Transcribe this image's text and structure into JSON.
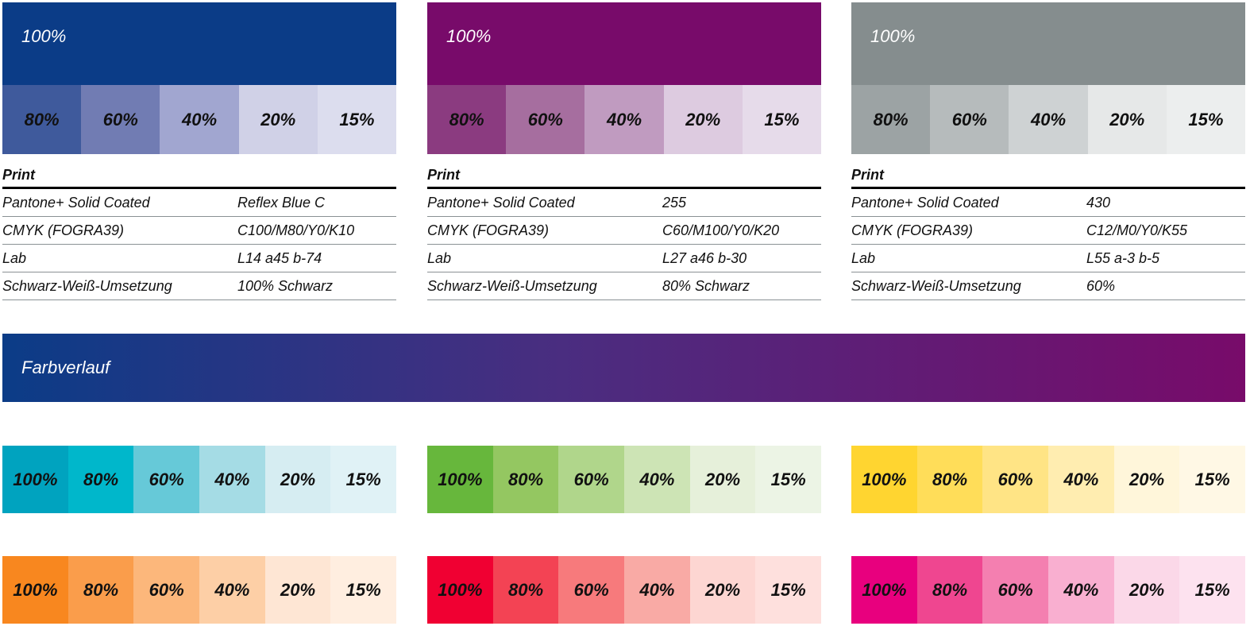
{
  "primary": [
    {
      "name": "blue",
      "label": "100%",
      "color": "#0b3c87",
      "tints": [
        {
          "l": "80%",
          "c": "#3f5a9c"
        },
        {
          "l": "60%",
          "c": "#717cb3"
        },
        {
          "l": "40%",
          "c": "#a1a6d0"
        },
        {
          "l": "20%",
          "c": "#d0d1e7"
        },
        {
          "l": "15%",
          "c": "#dcddee"
        }
      ],
      "print_title": "Print",
      "rows": [
        [
          "Pantone+ Solid Coated",
          "Reflex Blue C"
        ],
        [
          "CMYK (FOGRA39)",
          "C100/M80/Y0/K10"
        ],
        [
          "Lab",
          "L14 a45 b-74"
        ],
        [
          "Schwarz-Weiß-Umsetzung",
          "100% Schwarz"
        ]
      ]
    },
    {
      "name": "purple",
      "label": "100%",
      "color": "#780b6a",
      "tints": [
        {
          "l": "80%",
          "c": "#8b3b80"
        },
        {
          "l": "60%",
          "c": "#a66e9f"
        },
        {
          "l": "40%",
          "c": "#c09bc0"
        },
        {
          "l": "20%",
          "c": "#ddcbe0"
        },
        {
          "l": "15%",
          "c": "#e6dbea"
        }
      ],
      "print_title": "Print",
      "rows": [
        [
          "Pantone+ Solid Coated",
          "255"
        ],
        [
          "CMYK (FOGRA39)",
          "C60/M100/Y0/K20"
        ],
        [
          "Lab",
          "L27 a46 b-30"
        ],
        [
          "Schwarz-Weiß-Umsetzung",
          "80% Schwarz"
        ]
      ]
    },
    {
      "name": "gray",
      "label": "100%",
      "color": "#858d8e",
      "tints": [
        {
          "l": "80%",
          "c": "#9ca3a4"
        },
        {
          "l": "60%",
          "c": "#b6bbbc"
        },
        {
          "l": "40%",
          "c": "#ced2d3"
        },
        {
          "l": "20%",
          "c": "#e6e8e8"
        },
        {
          "l": "15%",
          "c": "#eceeee"
        }
      ],
      "print_title": "Print",
      "rows": [
        [
          "Pantone+ Solid Coated",
          "430"
        ],
        [
          "CMYK (FOGRA39)",
          "C12/M0/Y0/K55"
        ],
        [
          "Lab",
          "L55 a-3 b-5"
        ],
        [
          "Schwarz-Weiß-Umsetzung",
          "60%"
        ]
      ]
    }
  ],
  "gradient": {
    "label": "Farbverlauf"
  },
  "secondary": [
    {
      "name": "cyan",
      "swatches": [
        {
          "l": "100%",
          "c": "#00a3bf"
        },
        {
          "l": "80%",
          "c": "#00b7cb"
        },
        {
          "l": "60%",
          "c": "#66c9d8"
        },
        {
          "l": "40%",
          "c": "#a5dce5"
        },
        {
          "l": "20%",
          "c": "#d6edf2"
        },
        {
          "l": "15%",
          "c": "#e0f2f6"
        }
      ]
    },
    {
      "name": "green",
      "swatches": [
        {
          "l": "100%",
          "c": "#67b73c"
        },
        {
          "l": "80%",
          "c": "#94c761"
        },
        {
          "l": "60%",
          "c": "#b0d68b"
        },
        {
          "l": "40%",
          "c": "#cde4b5"
        },
        {
          "l": "20%",
          "c": "#e6f0da"
        },
        {
          "l": "15%",
          "c": "#ecf4e5"
        }
      ]
    },
    {
      "name": "yellow",
      "swatches": [
        {
          "l": "100%",
          "c": "#ffd530"
        },
        {
          "l": "80%",
          "c": "#ffdd59"
        },
        {
          "l": "60%",
          "c": "#ffe485"
        },
        {
          "l": "40%",
          "c": "#ffedb0"
        },
        {
          "l": "20%",
          "c": "#fff6da"
        },
        {
          "l": "15%",
          "c": "#fff8e5"
        }
      ]
    },
    {
      "name": "orange",
      "swatches": [
        {
          "l": "100%",
          "c": "#f8871f"
        },
        {
          "l": "80%",
          "c": "#fa9d4b"
        },
        {
          "l": "60%",
          "c": "#fcb77b"
        },
        {
          "l": "40%",
          "c": "#fdcfa6"
        },
        {
          "l": "20%",
          "c": "#fee6d4"
        },
        {
          "l": "15%",
          "c": "#ffeee0"
        }
      ]
    },
    {
      "name": "red",
      "swatches": [
        {
          "l": "100%",
          "c": "#f00032"
        },
        {
          "l": "80%",
          "c": "#f34354"
        },
        {
          "l": "60%",
          "c": "#f77a7c"
        },
        {
          "l": "40%",
          "c": "#f9aaa5"
        },
        {
          "l": "20%",
          "c": "#fdd6d2"
        },
        {
          "l": "15%",
          "c": "#fee0dd"
        }
      ]
    },
    {
      "name": "pink",
      "swatches": [
        {
          "l": "100%",
          "c": "#e8007e"
        },
        {
          "l": "80%",
          "c": "#ef4690"
        },
        {
          "l": "60%",
          "c": "#f47fb0"
        },
        {
          "l": "40%",
          "c": "#f9afd0"
        },
        {
          "l": "20%",
          "c": "#fbd8e8"
        },
        {
          "l": "15%",
          "c": "#fde2ef"
        }
      ]
    }
  ]
}
